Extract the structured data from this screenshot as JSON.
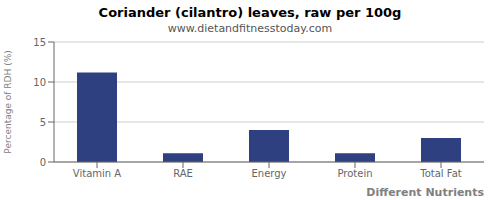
{
  "chart_data": {
    "type": "bar",
    "title": "Coriander (cilantro) leaves, raw per 100g",
    "subtitle": "www.dietandfitnesstoday.com",
    "xlabel": "Different Nutrients",
    "ylabel": "Percentage of RDH (%)",
    "categories": [
      "Vitamin A",
      "RAE",
      "Energy",
      "Protein",
      "Total Fat"
    ],
    "values": [
      11.2,
      1.1,
      4.0,
      1.1,
      3.0
    ],
    "color": "#2e4080",
    "ylim": [
      0,
      15
    ],
    "yticks": [
      0,
      5,
      10,
      15
    ],
    "grid": true
  }
}
